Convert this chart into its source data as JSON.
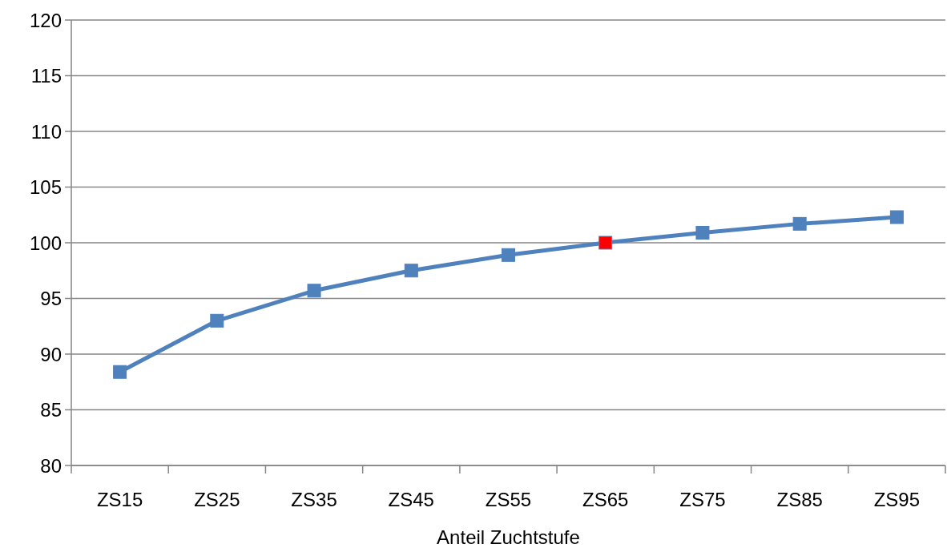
{
  "chart_data": {
    "type": "line",
    "xlabel": "Anteil Zuchtstufe",
    "categories": [
      "ZS15",
      "ZS25",
      "ZS35",
      "ZS45",
      "ZS55",
      "ZS65",
      "ZS75",
      "ZS85",
      "ZS95"
    ],
    "series": [
      {
        "color": "#4f81bd",
        "colors": [
          "#4f81bd",
          "#4f81bd",
          "#4f81bd",
          "#4f81bd",
          "#4f81bd",
          "#ff0000",
          "#4f81bd",
          "#4f81bd",
          "#4f81bd"
        ],
        "values": [
          88.4,
          93.0,
          95.7,
          97.5,
          98.9,
          100,
          100.9,
          101.7,
          102.3
        ]
      }
    ],
    "ylim": [
      80,
      120
    ],
    "yticks": [
      80,
      85,
      90,
      95,
      100,
      105,
      110,
      115,
      120
    ],
    "grid": "y",
    "marker": "square",
    "line_style": "solid"
  }
}
